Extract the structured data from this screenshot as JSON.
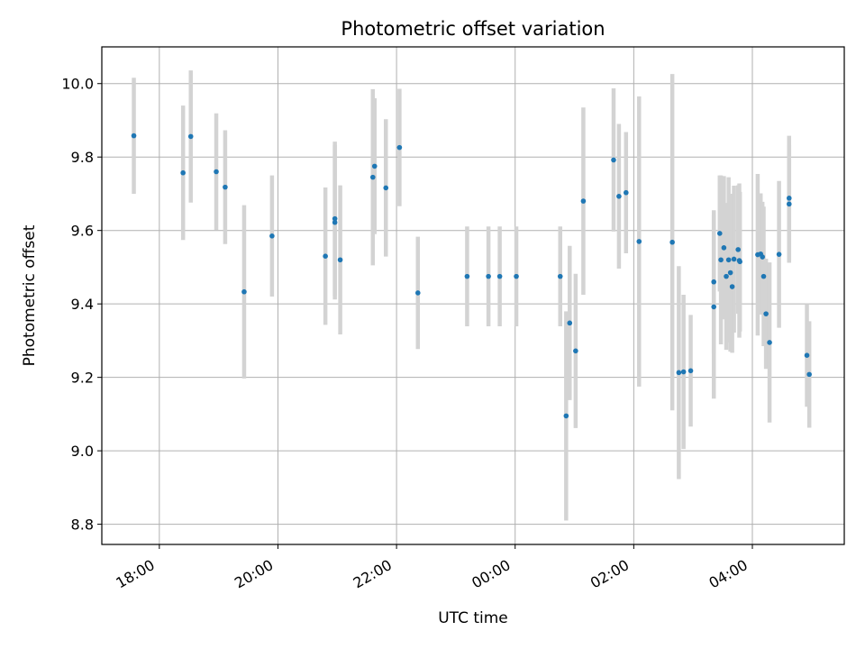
{
  "chart_data": {
    "type": "scatter",
    "title": "Photometric offset variation",
    "xlabel": "UTC time",
    "ylabel": "Photometric offset",
    "grid": true,
    "x_unit": "hours since 00:00 UTC",
    "xlim": [
      -6.97,
      5.55
    ],
    "ylim": [
      8.745,
      10.1
    ],
    "x_ticks": [
      {
        "value": -6,
        "label": "18:00"
      },
      {
        "value": -4,
        "label": "20:00"
      },
      {
        "value": -2,
        "label": "22:00"
      },
      {
        "value": 0,
        "label": "00:00"
      },
      {
        "value": 2,
        "label": "02:00"
      },
      {
        "value": 4,
        "label": "04:00"
      }
    ],
    "y_ticks": [
      {
        "value": 8.8,
        "label": "8.8"
      },
      {
        "value": 9.0,
        "label": "9.0"
      },
      {
        "value": 9.2,
        "label": "9.2"
      },
      {
        "value": 9.4,
        "label": "9.4"
      },
      {
        "value": 9.6,
        "label": "9.6"
      },
      {
        "value": 9.8,
        "label": "9.8"
      },
      {
        "value": 10.0,
        "label": "10.0"
      }
    ],
    "colors": {
      "point": "#1f77b4",
      "errorbar": "#d3d3d3",
      "grid": "#b0b0b0",
      "axes": "#000000"
    },
    "points": [
      {
        "x": -6.43,
        "y": 9.858,
        "err": 0.158
      },
      {
        "x": -5.6,
        "y": 9.757,
        "err": 0.183
      },
      {
        "x": -5.47,
        "y": 9.856,
        "err": 0.18
      },
      {
        "x": -5.04,
        "y": 9.76,
        "err": 0.159
      },
      {
        "x": -4.89,
        "y": 9.718,
        "err": 0.155
      },
      {
        "x": -4.57,
        "y": 9.433,
        "err": 0.236
      },
      {
        "x": -4.1,
        "y": 9.585,
        "err": 0.165
      },
      {
        "x": -3.2,
        "y": 9.53,
        "err": 0.187
      },
      {
        "x": -3.04,
        "y": 9.632,
        "err": 0.21
      },
      {
        "x": -3.04,
        "y": 9.622,
        "err": 0.21
      },
      {
        "x": -2.95,
        "y": 9.52,
        "err": 0.203
      },
      {
        "x": -2.4,
        "y": 9.745,
        "err": 0.24
      },
      {
        "x": -2.37,
        "y": 9.775,
        "err": 0.185
      },
      {
        "x": -2.18,
        "y": 9.716,
        "err": 0.187
      },
      {
        "x": -1.95,
        "y": 9.826,
        "err": 0.16
      },
      {
        "x": -1.64,
        "y": 9.43,
        "err": 0.153
      },
      {
        "x": -0.81,
        "y": 9.475,
        "err": 0.136
      },
      {
        "x": -0.45,
        "y": 9.475,
        "err": 0.136
      },
      {
        "x": -0.26,
        "y": 9.475,
        "err": 0.136
      },
      {
        "x": 0.02,
        "y": 9.475,
        "err": 0.136
      },
      {
        "x": 0.76,
        "y": 9.475,
        "err": 0.136
      },
      {
        "x": 0.86,
        "y": 9.095,
        "err": 0.285
      },
      {
        "x": 0.92,
        "y": 9.348,
        "err": 0.21
      },
      {
        "x": 1.02,
        "y": 9.272,
        "err": 0.21
      },
      {
        "x": 1.15,
        "y": 9.68,
        "err": 0.255
      },
      {
        "x": 1.66,
        "y": 9.792,
        "err": 0.195
      },
      {
        "x": 1.75,
        "y": 9.693,
        "err": 0.197
      },
      {
        "x": 1.87,
        "y": 9.703,
        "err": 0.165
      },
      {
        "x": 2.09,
        "y": 9.57,
        "err": 0.395
      },
      {
        "x": 2.65,
        "y": 9.568,
        "err": 0.458
      },
      {
        "x": 2.76,
        "y": 9.213,
        "err": 0.29
      },
      {
        "x": 2.84,
        "y": 9.215,
        "err": 0.21
      },
      {
        "x": 2.96,
        "y": 9.218,
        "err": 0.152
      },
      {
        "x": 3.35,
        "y": 9.392,
        "err": 0.25
      },
      {
        "x": 3.35,
        "y": 9.46,
        "err": 0.195
      },
      {
        "x": 3.45,
        "y": 9.592,
        "err": 0.158
      },
      {
        "x": 3.47,
        "y": 9.52,
        "err": 0.23
      },
      {
        "x": 3.52,
        "y": 9.553,
        "err": 0.195
      },
      {
        "x": 3.56,
        "y": 9.475,
        "err": 0.2
      },
      {
        "x": 3.6,
        "y": 9.52,
        "err": 0.225
      },
      {
        "x": 3.63,
        "y": 9.485,
        "err": 0.215
      },
      {
        "x": 3.66,
        "y": 9.447,
        "err": 0.18
      },
      {
        "x": 3.69,
        "y": 9.522,
        "err": 0.2
      },
      {
        "x": 3.76,
        "y": 9.548,
        "err": 0.175
      },
      {
        "x": 3.78,
        "y": 9.518,
        "err": 0.21
      },
      {
        "x": 3.79,
        "y": 9.515,
        "err": 0.19
      },
      {
        "x": 4.09,
        "y": 9.534,
        "err": 0.22
      },
      {
        "x": 4.14,
        "y": 9.536,
        "err": 0.165
      },
      {
        "x": 4.17,
        "y": 9.528,
        "err": 0.15
      },
      {
        "x": 4.19,
        "y": 9.475,
        "err": 0.19
      },
      {
        "x": 4.23,
        "y": 9.373,
        "err": 0.15
      },
      {
        "x": 4.29,
        "y": 9.295,
        "err": 0.218
      },
      {
        "x": 4.45,
        "y": 9.535,
        "err": 0.2
      },
      {
        "x": 4.62,
        "y": 9.688,
        "err": 0.17
      },
      {
        "x": 4.62,
        "y": 9.672,
        "err": 0.16
      },
      {
        "x": 4.92,
        "y": 9.26,
        "err": 0.14
      },
      {
        "x": 4.96,
        "y": 9.208,
        "err": 0.145
      }
    ]
  }
}
